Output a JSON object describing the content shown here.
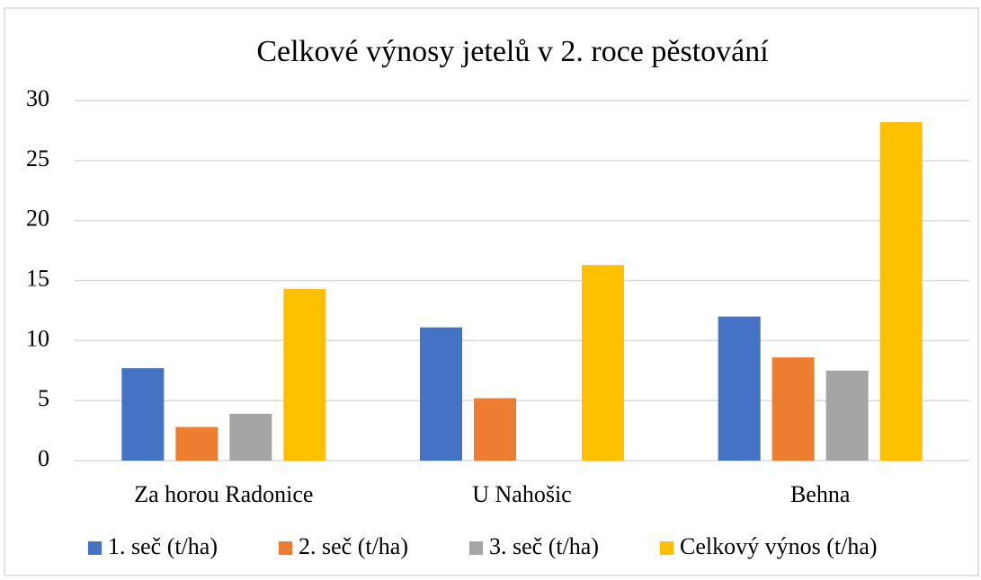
{
  "chart_data": {
    "type": "bar",
    "title": "Celkové výnosy jetelů v 2. roce pěstování",
    "categories": [
      "Za horou Radonice",
      "U Nahošic",
      "Behna"
    ],
    "series": [
      {
        "name": "1. seč (t/ha)",
        "color": "#4472c4",
        "values": [
          7.7,
          11.1,
          12.0
        ]
      },
      {
        "name": "2. seč (t/ha)",
        "color": "#ed7d31",
        "values": [
          2.8,
          5.2,
          8.6
        ]
      },
      {
        "name": "3. seč (t/ha)",
        "color": "#a5a5a5",
        "values": [
          3.9,
          null,
          7.5
        ]
      },
      {
        "name": "Celkový výnos (t/ha)",
        "color": "#ffc000",
        "values": [
          14.3,
          16.3,
          28.2
        ]
      }
    ],
    "ylim": [
      0,
      30
    ],
    "yticks": [
      0,
      5,
      10,
      15,
      20,
      25,
      30
    ],
    "grid": true,
    "legend": "bottom"
  }
}
